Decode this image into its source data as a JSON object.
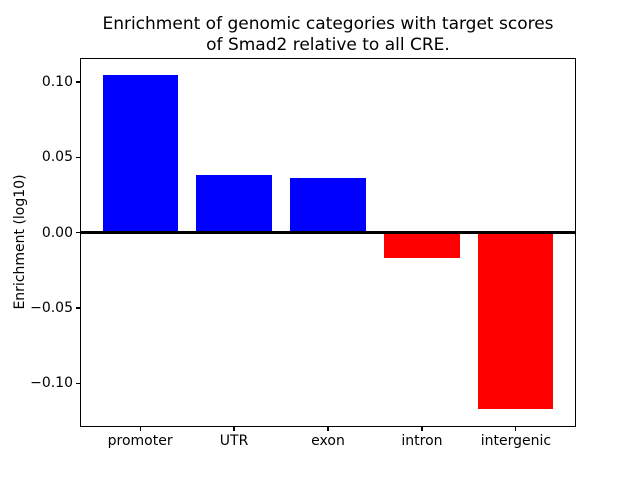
{
  "figure": {
    "background": "#ffffff",
    "axis_color": "#000000"
  },
  "chart_data": {
    "type": "bar",
    "title": "Enrichment of genomic categories with target scores\nof Smad2 relative to all CRE.",
    "title_lines": [
      "Enrichment of genomic categories with target scores",
      "of Smad2 relative to all CRE."
    ],
    "xlabel": "",
    "ylabel": "Enrichment (log10)",
    "categories": [
      "promoter",
      "UTR",
      "exon",
      "intron",
      "intergenic"
    ],
    "values": [
      0.105,
      0.038,
      0.036,
      -0.017,
      -0.117
    ],
    "colors": [
      "#0000ff",
      "#0000ff",
      "#0000ff",
      "#ff0000",
      "#ff0000"
    ],
    "positive_color": "#0000ff",
    "negative_color": "#ff0000",
    "ylim": [
      -0.129,
      0.116
    ],
    "yticks": [
      0.1,
      0.05,
      0.0,
      -0.05,
      -0.1
    ],
    "ytick_labels": [
      "0.10",
      "0.05",
      "0.00",
      "−0.05",
      "−0.10"
    ],
    "grid": false,
    "legend": false,
    "zero_line": {
      "value": 0,
      "color": "#000000",
      "linewidth": 2
    }
  }
}
